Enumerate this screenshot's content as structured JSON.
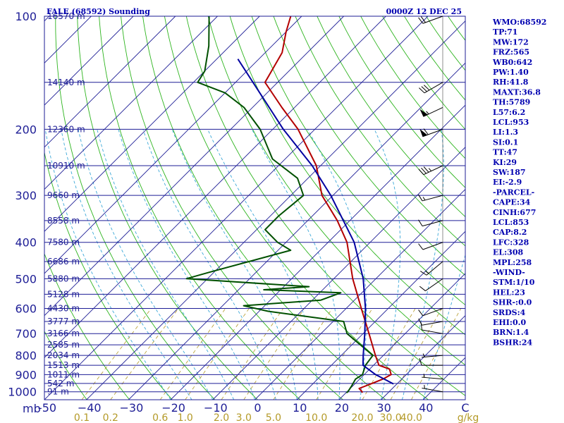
{
  "chart_data": {
    "type": "line",
    "title_left": "FALE (68592) Sounding",
    "title_right": "0000Z 12 DEC 25",
    "pressure_levels": [
      100,
      200,
      300,
      400,
      500,
      600,
      700,
      800,
      900,
      1000
    ],
    "pressure_range": [
      100,
      1050
    ],
    "temperature_range_at_base": [
      -50,
      50
    ],
    "temperature_ticks": [
      -50,
      -40,
      -30,
      -20,
      -10,
      0,
      10,
      20,
      30,
      40
    ],
    "temperature_tick_labels": [
      "-50",
      "−40",
      "−30",
      "−20",
      "−10",
      "0",
      "10",
      "20",
      "30",
      "40"
    ],
    "axis_corner_label": "mb",
    "c_label": "C",
    "mixing_ratio_unit": "g/kg",
    "mixing_ratio_labels": [
      {
        "value": 0.1,
        "label": "0.1"
      },
      {
        "value": 0.2,
        "label": "0.2"
      },
      {
        "value": 0.6,
        "label": "0.6"
      },
      {
        "value": 1.0,
        "label": "1.0"
      },
      {
        "value": 2.0,
        "label": "2.0"
      },
      {
        "value": 3.0,
        "label": "3.0"
      },
      {
        "value": 5.0,
        "label": "5.0"
      },
      {
        "value": 10.0,
        "label": "10.0"
      },
      {
        "value": 20.0,
        "label": "20.0"
      },
      {
        "value": 30.0,
        "label": "30.0"
      },
      {
        "value": 40.0,
        "label": "40.0"
      }
    ],
    "height_labels": [
      {
        "p": 100,
        "label": "16570 m"
      },
      {
        "p": 150,
        "label": "14140 m"
      },
      {
        "p": 200,
        "label": "12360 m"
      },
      {
        "p": 250,
        "label": "10910 m"
      },
      {
        "p": 300,
        "label": "9660 m"
      },
      {
        "p": 350,
        "label": "8558 m"
      },
      {
        "p": 400,
        "label": "7580 m"
      },
      {
        "p": 450,
        "label": "6686 m"
      },
      {
        "p": 500,
        "label": "5880 m"
      },
      {
        "p": 550,
        "label": "5128 m"
      },
      {
        "p": 600,
        "label": "4430 m"
      },
      {
        "p": 650,
        "label": "3777 m"
      },
      {
        "p": 700,
        "label": "3166 m"
      },
      {
        "p": 750,
        "label": "2585 m"
      },
      {
        "p": 800,
        "label": "2034 m"
      },
      {
        "p": 850,
        "label": "1513 m"
      },
      {
        "p": 900,
        "label": "1011 m"
      },
      {
        "p": 950,
        "label": "542 m"
      },
      {
        "p": 1000,
        "label": "91 m"
      }
    ],
    "series": [
      {
        "name": "temperature",
        "color": "#b40000",
        "points": [
          [
            1006,
            23.8
          ],
          [
            1000,
            23.6
          ],
          [
            980,
            22.1
          ],
          [
            950,
            24.0
          ],
          [
            925,
            25.5
          ],
          [
            900,
            26.4
          ],
          [
            870,
            24.7
          ],
          [
            850,
            21.3
          ],
          [
            800,
            18.1
          ],
          [
            700,
            11.4
          ],
          [
            600,
            3.6
          ],
          [
            500,
            -5.5
          ],
          [
            400,
            -15.5
          ],
          [
            350,
            -23.0
          ],
          [
            300,
            -32.6
          ],
          [
            250,
            -41.0
          ],
          [
            200,
            -54.0
          ],
          [
            175,
            -63.0
          ],
          [
            150,
            -73.0
          ],
          [
            125,
            -76.0
          ],
          [
            110,
            -80.0
          ],
          [
            100,
            -82.6
          ]
        ]
      },
      {
        "name": "dewpoint",
        "color": "#005000",
        "points": [
          [
            1006,
            20.1
          ],
          [
            1000,
            20.2
          ],
          [
            970,
            19.8
          ],
          [
            925,
            19.0
          ],
          [
            900,
            19.6
          ],
          [
            850,
            18.1
          ],
          [
            800,
            17.5
          ],
          [
            700,
            6.2
          ],
          [
            650,
            2.5
          ],
          [
            610,
            -18.0
          ],
          [
            590,
            -25.0
          ],
          [
            570,
            -8.0
          ],
          [
            545,
            -5.0
          ],
          [
            535,
            -24.0
          ],
          [
            525,
            -14.0
          ],
          [
            500,
            -45.0
          ],
          [
            480,
            -41.0
          ],
          [
            420,
            -27.0
          ],
          [
            400,
            -32.0
          ],
          [
            370,
            -38.0
          ],
          [
            340,
            -38.0
          ],
          [
            300,
            -37.0
          ],
          [
            270,
            -42.5
          ],
          [
            240,
            -53.0
          ],
          [
            200,
            -63.0
          ],
          [
            175,
            -72.0
          ],
          [
            160,
            -80.0
          ],
          [
            150,
            -89.0
          ],
          [
            140,
            -90.0
          ],
          [
            120,
            -95.0
          ],
          [
            100,
            -102.0
          ]
        ]
      },
      {
        "name": "parcel",
        "color": "#0000a0",
        "points": [
          [
            953,
            29.2
          ],
          [
            900,
            22.7
          ],
          [
            850,
            17.5
          ],
          [
            800,
            15.2
          ],
          [
            700,
            10.4
          ],
          [
            600,
            4.6
          ],
          [
            500,
            -3.0
          ],
          [
            400,
            -13.8
          ],
          [
            300,
            -30.5
          ],
          [
            250,
            -42.0
          ],
          [
            200,
            -57.5
          ],
          [
            130,
            -85.0
          ]
        ]
      }
    ],
    "wind_barbs": [
      {
        "p": 1000,
        "dir": 280,
        "spd": 5
      },
      {
        "p": 925,
        "dir": 275,
        "spd": 5
      },
      {
        "p": 850,
        "dir": 270,
        "spd": 10
      },
      {
        "p": 800,
        "dir": 265,
        "spd": 5
      },
      {
        "p": 700,
        "dir": 280,
        "spd": 10
      },
      {
        "p": 650,
        "dir": 260,
        "spd": 10
      },
      {
        "p": 600,
        "dir": 250,
        "spd": 10
      },
      {
        "p": 500,
        "dir": 235,
        "spd": 10
      },
      {
        "p": 450,
        "dir": 230,
        "spd": 15
      },
      {
        "p": 400,
        "dir": 250,
        "spd": 10
      },
      {
        "p": 350,
        "dir": 255,
        "spd": 10
      },
      {
        "p": 300,
        "dir": 255,
        "spd": 15
      },
      {
        "p": 250,
        "dir": 245,
        "spd": 35
      },
      {
        "p": 200,
        "dir": 250,
        "spd": 60
      },
      {
        "p": 175,
        "dir": 245,
        "spd": 55
      },
      {
        "p": 150,
        "dir": 240,
        "spd": 30
      },
      {
        "p": 100,
        "dir": 250,
        "spd": 20
      }
    ],
    "indices": [
      "WMO:68592",
      "TP:71",
      "MW:172",
      "FRZ:565",
      "WB0:642",
      "PW:1.40",
      "RH:41.8",
      "MAXT:36.8",
      "TH:5789",
      "L57:6.2",
      "LCL:953",
      "LI:1.3",
      "SI:0.1",
      "TT:47",
      "KI:29",
      "SW:187",
      "EI:-2.9",
      "-PARCEL-",
      "CAPE:34",
      "CINH:677",
      "LCL:853",
      "CAP:8.2",
      "LFC:328",
      "EL:308",
      "MPL:258",
      "-WIND-",
      "STM:1/10",
      "HEL:23",
      "SHR-:0.0",
      "SRDS:4",
      "EHI:0.0",
      "BRN:1.4",
      "BSHR:24"
    ],
    "colors": {
      "frame": "#1e1e96",
      "isotherm": "#1e1e96",
      "dry_adiabat": "#2db41e",
      "moist_adiabat": "#3ca8d8",
      "mixing_ratio": "#b49a28",
      "temperature": "#b40000",
      "dewpoint": "#005000",
      "parcel": "#0000a0",
      "barb": "#000000"
    }
  }
}
